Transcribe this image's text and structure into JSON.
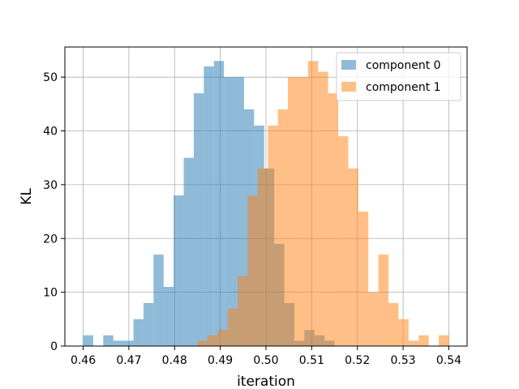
{
  "chart_data": {
    "type": "histogram",
    "xlabel": "iteration",
    "ylabel": "KL",
    "xlim": [
      0.456,
      0.544
    ],
    "ylim": [
      0,
      55.6
    ],
    "xticks": [
      0.46,
      0.47,
      0.48,
      0.49,
      0.5,
      0.51,
      0.52,
      0.53,
      0.54
    ],
    "xtick_labels": [
      "0.46",
      "0.47",
      "0.48",
      "0.49",
      "0.50",
      "0.51",
      "0.52",
      "0.53",
      "0.54"
    ],
    "yticks": [
      0,
      10,
      20,
      30,
      40,
      50
    ],
    "ytick_labels": [
      "0",
      "10",
      "20",
      "30",
      "40",
      "50"
    ],
    "grid": true,
    "legend_position": "upper right",
    "series": [
      {
        "name": "component 0",
        "color": "#1f77b4",
        "alpha": 0.5,
        "bin_edges": [
          0.46,
          0.4622,
          0.4644,
          0.4666,
          0.4688,
          0.471,
          0.4732,
          0.4754,
          0.4776,
          0.4798,
          0.482,
          0.4842,
          0.4864,
          0.4886,
          0.4908,
          0.493,
          0.4952,
          0.4974,
          0.4996,
          0.5018,
          0.504,
          0.5062,
          0.5084,
          0.5106,
          0.5128,
          0.515
        ],
        "counts": [
          2,
          0,
          2,
          1,
          1,
          5,
          8,
          17,
          11,
          28,
          35,
          47,
          52,
          53,
          50,
          50,
          44,
          41,
          33,
          19,
          8,
          1,
          3,
          2,
          1
        ]
      },
      {
        "name": "component 1",
        "color": "#ff7f0e",
        "alpha": 0.5,
        "bin_edges": [
          0.485,
          0.4872,
          0.4894,
          0.4916,
          0.4938,
          0.496,
          0.4982,
          0.5004,
          0.5026,
          0.5048,
          0.507,
          0.5092,
          0.5114,
          0.5136,
          0.5158,
          0.518,
          0.5202,
          0.5224,
          0.5246,
          0.5268,
          0.529,
          0.5312,
          0.5334,
          0.5356,
          0.5378,
          0.54
        ],
        "counts": [
          1,
          2,
          3,
          7,
          13,
          28,
          33,
          41,
          44,
          50,
          50,
          53,
          51,
          47,
          39,
          33,
          25,
          10,
          17,
          8,
          5,
          1,
          2,
          0,
          2
        ]
      }
    ]
  }
}
